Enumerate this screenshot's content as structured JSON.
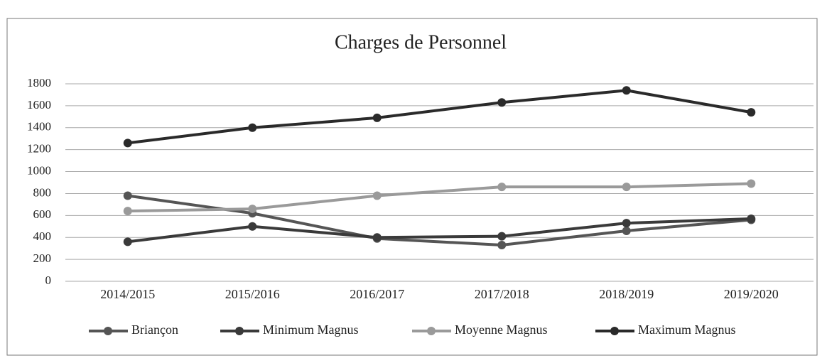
{
  "chart_data": {
    "type": "line",
    "title": "Charges de Personnel",
    "categories": [
      "2014/2015",
      "2015/2016",
      "2016/2017",
      "2017/2018",
      "2018/2019",
      "2019/2020"
    ],
    "series": [
      {
        "name": "Briançon",
        "color": "#555555",
        "values": [
          780,
          620,
          390,
          330,
          460,
          560
        ]
      },
      {
        "name": "Minimum Magnus",
        "color": "#3a3a3a",
        "values": [
          360,
          500,
          400,
          410,
          530,
          570
        ]
      },
      {
        "name": "Moyenne Magnus",
        "color": "#9a9a9a",
        "values": [
          640,
          660,
          780,
          860,
          860,
          890
        ]
      },
      {
        "name": "Maximum Magnus",
        "color": "#2a2a2a",
        "values": [
          1260,
          1400,
          1490,
          1630,
          1740,
          1540
        ]
      }
    ],
    "ylim": [
      0,
      1800
    ],
    "yticks": [
      0,
      200,
      400,
      600,
      800,
      1000,
      1200,
      1400,
      1600,
      1800
    ],
    "grid": true,
    "legend": "bottom"
  }
}
